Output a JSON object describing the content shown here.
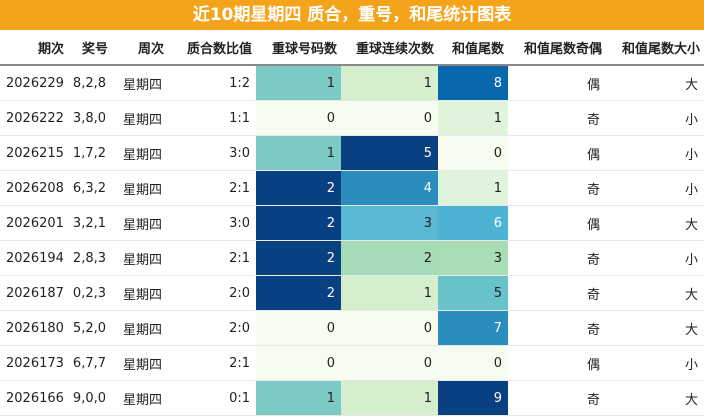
{
  "title": "近10期星期四 质合，重号，和尾统计图表",
  "columns": [
    "期次",
    "奖号",
    "周次",
    "质合数比值",
    "重球号码数",
    "重球连续次数",
    "和值尾数",
    "和值尾数奇偶",
    "和值尾数大小"
  ],
  "rows": [
    {
      "issue": "2026229",
      "number": "8,2,8",
      "weekday": "星期四",
      "ratio": "1:2",
      "repeat": "1",
      "consecutive": "1",
      "sum_tail": "8",
      "parity": "偶",
      "size": "大"
    },
    {
      "issue": "2026222",
      "number": "3,8,0",
      "weekday": "星期四",
      "ratio": "1:1",
      "repeat": "0",
      "consecutive": "0",
      "sum_tail": "1",
      "parity": "奇",
      "size": "小"
    },
    {
      "issue": "2026215",
      "number": "1,7,2",
      "weekday": "星期四",
      "ratio": "3:0",
      "repeat": "1",
      "consecutive": "5",
      "sum_tail": "0",
      "parity": "偶",
      "size": "小"
    },
    {
      "issue": "2026208",
      "number": "6,3,2",
      "weekday": "星期四",
      "ratio": "2:1",
      "repeat": "2",
      "consecutive": "4",
      "sum_tail": "1",
      "parity": "奇",
      "size": "小"
    },
    {
      "issue": "2026201",
      "number": "3,2,1",
      "weekday": "星期四",
      "ratio": "3:0",
      "repeat": "2",
      "consecutive": "3",
      "sum_tail": "6",
      "parity": "偶",
      "size": "大"
    },
    {
      "issue": "2026194",
      "number": "2,8,3",
      "weekday": "星期四",
      "ratio": "2:1",
      "repeat": "2",
      "consecutive": "2",
      "sum_tail": "3",
      "parity": "奇",
      "size": "小"
    },
    {
      "issue": "2026187",
      "number": "0,2,3",
      "weekday": "星期四",
      "ratio": "2:0",
      "repeat": "2",
      "consecutive": "1",
      "sum_tail": "5",
      "parity": "奇",
      "size": "大"
    },
    {
      "issue": "2026180",
      "number": "5,2,0",
      "weekday": "星期四",
      "ratio": "2:0",
      "repeat": "0",
      "consecutive": "0",
      "sum_tail": "7",
      "parity": "奇",
      "size": "大"
    },
    {
      "issue": "2026173",
      "number": "6,7,7",
      "weekday": "星期四",
      "ratio": "2:1",
      "repeat": "0",
      "consecutive": "0",
      "sum_tail": "0",
      "parity": "偶",
      "size": "小"
    },
    {
      "issue": "2026166",
      "number": "9,0,0",
      "weekday": "星期四",
      "ratio": "0:1",
      "repeat": "1",
      "consecutive": "1",
      "sum_tail": "9",
      "parity": "奇",
      "size": "大"
    }
  ],
  "heatmap_colors": {
    "repeat": {
      "0": "#f7fcf0",
      "1": "#7bcbc4",
      "2": "#084081"
    },
    "consecutive": {
      "0": "#f7fcf0",
      "1": "#d4eece",
      "2": "#a5dbb6",
      "3": "#5ab8d2",
      "4": "#2b8cbe",
      "5": "#084081"
    },
    "sum_tail": {
      "0": "#f7fcf0",
      "1": "#e0f3db",
      "3": "#a8ddb5",
      "5": "#67c2ca",
      "6": "#4eb3d3",
      "7": "#2b8cbe",
      "8": "#0868ac",
      "9": "#084081"
    }
  }
}
